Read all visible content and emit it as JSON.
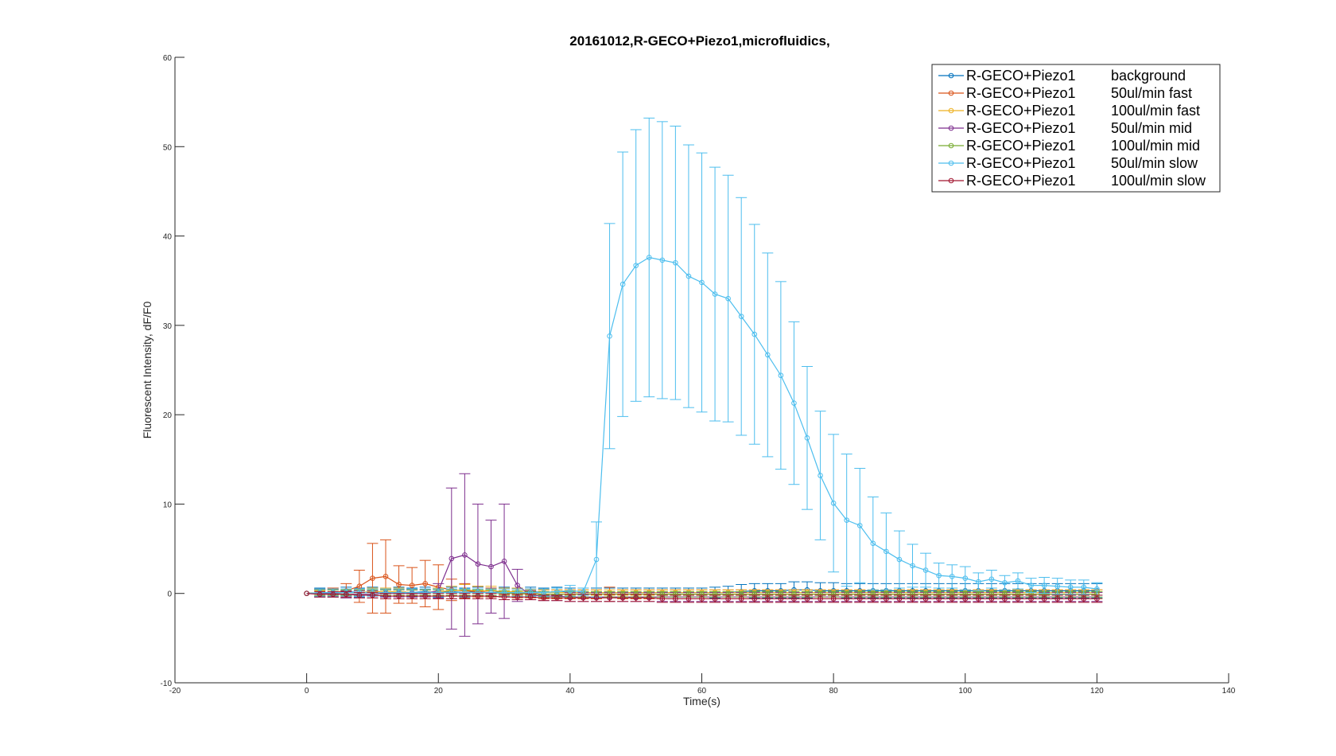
{
  "chart_data": {
    "type": "line",
    "title": "20161012,R-GECO+Piezo1,microfluidics,",
    "xlabel": "Time(s)",
    "ylabel": "Fluorescent Intensity, dF/F0",
    "xlim": [
      -20,
      140
    ],
    "ylim": [
      -10,
      60
    ],
    "xticks": [
      "-20",
      "0",
      "20",
      "40",
      "60",
      "80",
      "100",
      "120",
      "140"
    ],
    "yticks": [
      "-10",
      "0",
      "10",
      "20",
      "30",
      "40",
      "50",
      "60"
    ],
    "grid": false,
    "legend_position": "top-right",
    "x": [
      0,
      2,
      4,
      6,
      8,
      10,
      12,
      14,
      16,
      18,
      20,
      22,
      24,
      26,
      28,
      30,
      32,
      34,
      36,
      38,
      40,
      42,
      44,
      46,
      48,
      50,
      52,
      54,
      56,
      58,
      60,
      62,
      64,
      66,
      68,
      70,
      72,
      74,
      76,
      78,
      80,
      82,
      84,
      86,
      88,
      90,
      92,
      94,
      96,
      98,
      100,
      102,
      104,
      106,
      108,
      110,
      112,
      114,
      116,
      118,
      120
    ],
    "series": [
      {
        "name_col1": "R-GECO+Piezo1",
        "name_col2": "background",
        "color": "#0072BD",
        "values": [
          0,
          0.1,
          0.1,
          0.2,
          0.1,
          0.2,
          0.1,
          0.2,
          0.1,
          0.2,
          0.1,
          0.2,
          0.1,
          0.2,
          0.1,
          0.2,
          0.1,
          0.2,
          0.1,
          0.2,
          0.1,
          0.1,
          0.1,
          0.1,
          0.1,
          0.1,
          0.1,
          0.1,
          0.1,
          0.1,
          0.1,
          0.1,
          0.1,
          0.2,
          0.3,
          0.3,
          0.3,
          0.4,
          0.4,
          0.3,
          0.3,
          0.3,
          0.3,
          0.3,
          0.3,
          0.3,
          0.3,
          0.3,
          0.3,
          0.3,
          0.3,
          0.3,
          0.3,
          0.3,
          0.3,
          0.3,
          0.3,
          0.3,
          0.3,
          0.3,
          0.3
        ],
        "errors": [
          0,
          0.5,
          0.5,
          0.5,
          0.5,
          0.5,
          0.5,
          0.5,
          0.5,
          0.5,
          0.5,
          0.5,
          0.5,
          0.5,
          0.5,
          0.5,
          0.5,
          0.5,
          0.5,
          0.5,
          0.5,
          0.5,
          0.5,
          0.5,
          0.5,
          0.5,
          0.5,
          0.5,
          0.5,
          0.5,
          0.5,
          0.6,
          0.7,
          0.8,
          0.8,
          0.8,
          0.8,
          0.9,
          0.9,
          0.9,
          0.9,
          0.8,
          0.8,
          0.8,
          0.8,
          0.8,
          0.8,
          0.8,
          0.8,
          0.8,
          0.8,
          0.8,
          0.8,
          0.8,
          0.8,
          0.8,
          0.8,
          0.8,
          0.8,
          0.8,
          0.8
        ]
      },
      {
        "name_col1": "R-GECO+Piezo1",
        "name_col2": "50ul/min fast",
        "color": "#D95319",
        "values": [
          0,
          0.1,
          0.1,
          0.3,
          0.8,
          1.7,
          1.9,
          1.0,
          0.9,
          1.1,
          0.7,
          0.4,
          0.3,
          0.2,
          0.1,
          0.1,
          0.0,
          0.0,
          -0.1,
          -0.1,
          -0.1,
          -0.1,
          -0.1,
          -0.1,
          -0.1,
          -0.1,
          -0.1,
          -0.1,
          -0.1,
          -0.1,
          -0.1,
          -0.1,
          -0.1,
          -0.1,
          -0.1,
          -0.1,
          -0.1,
          -0.1,
          -0.1,
          -0.1,
          -0.1,
          -0.1,
          -0.1,
          -0.1,
          -0.1,
          -0.1,
          -0.1,
          -0.1,
          -0.1,
          -0.1,
          -0.1,
          -0.1,
          -0.1,
          -0.1,
          -0.1,
          -0.1,
          -0.1,
          -0.1,
          -0.1,
          -0.1,
          -0.1
        ],
        "errors": [
          0,
          0.4,
          0.5,
          0.8,
          1.8,
          3.9,
          4.1,
          2.1,
          2.0,
          2.6,
          2.5,
          1.2,
          0.8,
          0.6,
          0.5,
          0.5,
          0.5,
          0.5,
          0.5,
          0.5,
          0.5,
          0.5,
          0.5,
          0.8,
          0.5,
          0.5,
          0.5,
          0.5,
          0.5,
          0.5,
          0.5,
          0.5,
          0.5,
          0.5,
          0.5,
          0.5,
          0.5,
          0.5,
          0.5,
          0.5,
          0.5,
          0.5,
          0.5,
          0.5,
          0.5,
          0.5,
          0.5,
          0.5,
          0.5,
          0.5,
          0.5,
          0.5,
          0.5,
          0.5,
          0.5,
          0.5,
          0.5,
          0.5,
          0.5,
          0.5,
          0.5
        ]
      },
      {
        "name_col1": "R-GECO+Piezo1",
        "name_col2": "100ul/min fast",
        "color": "#EDB120",
        "values": [
          0,
          0,
          0.1,
          0.1,
          0.1,
          0.2,
          0.2,
          0.2,
          0.1,
          0.1,
          0.2,
          0.3,
          0.4,
          0.3,
          0.3,
          0.2,
          0.2,
          0.1,
          0.1,
          0.1,
          0.1,
          0.1,
          0.1,
          0.1,
          0.1,
          0.1,
          0.1,
          0.1,
          0.1,
          0.1,
          0.1,
          0.1,
          0.1,
          0.1,
          0.1,
          0.1,
          0.1,
          0.1,
          0.1,
          0.1,
          0.1,
          0.1,
          0.1,
          0.1,
          0.1,
          0.1,
          0.1,
          0.1,
          0.1,
          0.1,
          0.1,
          0.1,
          0.1,
          0.1,
          0.1,
          0.1,
          0.1,
          0.1,
          0.1,
          0.1,
          0.1
        ],
        "errors": [
          0,
          0.3,
          0.3,
          0.3,
          0.3,
          0.4,
          0.4,
          0.4,
          0.3,
          0.3,
          0.4,
          0.5,
          0.6,
          0.5,
          0.5,
          0.4,
          0.4,
          0.3,
          0.3,
          0.3,
          0.3,
          0.3,
          0.3,
          0.3,
          0.3,
          0.3,
          0.3,
          0.3,
          0.3,
          0.3,
          0.3,
          0.3,
          0.3,
          0.3,
          0.3,
          0.3,
          0.3,
          0.3,
          0.3,
          0.3,
          0.3,
          0.3,
          0.3,
          0.3,
          0.3,
          0.3,
          0.3,
          0.3,
          0.3,
          0.3,
          0.3,
          0.3,
          0.3,
          0.3,
          0.3,
          0.3,
          0.3,
          0.3,
          0.3,
          0.3,
          0.3
        ]
      },
      {
        "name_col1": "R-GECO+Piezo1",
        "name_col2": "50ul/min mid",
        "color": "#7E2F8E",
        "values": [
          0,
          0,
          0,
          -0.1,
          -0.1,
          -0.1,
          0.0,
          0.0,
          0.0,
          0.0,
          0.3,
          3.9,
          4.3,
          3.3,
          3.0,
          3.6,
          0.9,
          -0.2,
          -0.3,
          -0.3,
          -0.4,
          -0.4,
          -0.4,
          -0.4,
          -0.4,
          -0.4,
          -0.4,
          -0.4,
          -0.4,
          -0.4,
          -0.4,
          -0.4,
          -0.4,
          -0.4,
          -0.4,
          -0.4,
          -0.4,
          -0.4,
          -0.4,
          -0.4,
          -0.4,
          -0.4,
          -0.4,
          -0.4,
          -0.4,
          -0.4,
          -0.4,
          -0.4,
          -0.4,
          -0.4,
          -0.4,
          -0.4,
          -0.4,
          -0.4,
          -0.4,
          -0.4,
          -0.4,
          -0.4,
          -0.4,
          -0.4,
          -0.4
        ],
        "errors": [
          0,
          0.4,
          0.4,
          0.4,
          0.4,
          0.4,
          0.4,
          0.4,
          0.4,
          0.4,
          0.8,
          7.9,
          9.1,
          6.7,
          5.2,
          6.4,
          1.8,
          0.5,
          0.5,
          0.5,
          0.5,
          0.5,
          0.5,
          0.5,
          0.5,
          0.5,
          0.5,
          0.5,
          0.5,
          0.5,
          0.5,
          0.5,
          0.5,
          0.5,
          0.5,
          0.5,
          0.5,
          0.5,
          0.5,
          0.5,
          0.5,
          0.5,
          0.5,
          0.5,
          0.5,
          0.5,
          0.5,
          0.5,
          0.5,
          0.5,
          0.5,
          0.5,
          0.5,
          0.5,
          0.5,
          0.5,
          0.5,
          0.5,
          0.5,
          0.5,
          0.5
        ]
      },
      {
        "name_col1": "R-GECO+Piezo1",
        "name_col2": "100ul/min mid",
        "color": "#77AC30",
        "values": [
          0,
          0.1,
          0.1,
          0.1,
          0.1,
          0.1,
          0.1,
          0.1,
          0.1,
          0.1,
          0.1,
          0.1,
          0.1,
          0.1,
          0.1,
          0.0,
          0.0,
          -0.1,
          -0.1,
          -0.1,
          -0.1,
          -0.1,
          -0.1,
          -0.1,
          -0.1,
          -0.1,
          -0.1,
          -0.1,
          -0.1,
          -0.1,
          -0.1,
          -0.1,
          -0.1,
          -0.1,
          -0.1,
          -0.1,
          -0.1,
          -0.1,
          -0.1,
          -0.1,
          -0.1,
          -0.1,
          -0.1,
          -0.1,
          -0.1,
          -0.1,
          -0.1,
          -0.1,
          -0.1,
          -0.1,
          -0.1,
          -0.1,
          -0.1,
          -0.1,
          -0.1,
          -0.1,
          -0.1,
          -0.1,
          -0.1,
          -0.1,
          -0.1
        ],
        "errors": [
          0,
          0.3,
          0.3,
          0.3,
          0.3,
          0.3,
          0.3,
          0.3,
          0.3,
          0.3,
          0.3,
          0.3,
          0.3,
          0.3,
          0.3,
          0.3,
          0.3,
          0.3,
          0.3,
          0.3,
          0.3,
          0.3,
          0.3,
          0.3,
          0.3,
          0.3,
          0.3,
          0.3,
          0.3,
          0.3,
          0.3,
          0.3,
          0.3,
          0.3,
          0.3,
          0.3,
          0.3,
          0.3,
          0.3,
          0.3,
          0.3,
          0.3,
          0.3,
          0.3,
          0.3,
          0.3,
          0.3,
          0.3,
          0.3,
          0.3,
          0.3,
          0.3,
          0.3,
          0.3,
          0.3,
          0.3,
          0.3,
          0.3,
          0.3,
          0.3,
          0.3
        ]
      },
      {
        "name_col1": "R-GECO+Piezo1",
        "name_col2": "50ul/min slow",
        "color": "#4DBEEE",
        "values": [
          0,
          0.1,
          0.1,
          0.1,
          0.1,
          0.1,
          0.1,
          0.1,
          0.1,
          0.1,
          0.1,
          0.1,
          0.1,
          0.1,
          0.1,
          0.1,
          0.1,
          0.1,
          0.1,
          0.2,
          0.3,
          0.2,
          3.8,
          28.8,
          34.6,
          36.7,
          37.6,
          37.3,
          37.0,
          35.5,
          34.8,
          33.5,
          33.0,
          31.0,
          29.0,
          26.7,
          24.4,
          21.3,
          17.4,
          13.2,
          10.1,
          8.2,
          7.6,
          5.6,
          4.7,
          3.8,
          3.1,
          2.6,
          2.0,
          1.9,
          1.7,
          1.3,
          1.6,
          1.2,
          1.4,
          0.9,
          0.9,
          0.8,
          0.7,
          0.7,
          0.5
        ],
        "errors": [
          0,
          0.4,
          0.4,
          0.4,
          0.4,
          0.4,
          0.4,
          0.4,
          0.4,
          0.4,
          0.4,
          0.4,
          0.4,
          0.4,
          0.4,
          0.4,
          0.4,
          0.4,
          0.4,
          0.4,
          0.6,
          0.4,
          4.2,
          12.6,
          14.8,
          15.2,
          15.6,
          15.5,
          15.3,
          14.7,
          14.5,
          14.2,
          13.8,
          13.3,
          12.3,
          11.4,
          10.5,
          9.1,
          8.0,
          7.2,
          7.7,
          7.4,
          6.4,
          5.2,
          4.3,
          3.2,
          2.4,
          1.9,
          1.4,
          1.3,
          1.3,
          1.0,
          1.0,
          0.8,
          0.9,
          0.8,
          0.9,
          0.9,
          0.8,
          0.8,
          0.7
        ]
      },
      {
        "name_col1": "R-GECO+Piezo1",
        "name_col2": "100ul/min slow",
        "color": "#A2142F",
        "values": [
          0,
          -0.1,
          -0.1,
          -0.1,
          -0.2,
          -0.2,
          -0.3,
          -0.3,
          -0.3,
          -0.3,
          -0.3,
          -0.3,
          -0.3,
          -0.3,
          -0.3,
          -0.4,
          -0.4,
          -0.4,
          -0.5,
          -0.5,
          -0.5,
          -0.5,
          -0.5,
          -0.5,
          -0.5,
          -0.5,
          -0.5,
          -0.6,
          -0.6,
          -0.6,
          -0.6,
          -0.6,
          -0.6,
          -0.6,
          -0.6,
          -0.6,
          -0.6,
          -0.6,
          -0.6,
          -0.6,
          -0.6,
          -0.6,
          -0.6,
          -0.6,
          -0.6,
          -0.6,
          -0.6,
          -0.6,
          -0.6,
          -0.6,
          -0.6,
          -0.6,
          -0.6,
          -0.6,
          -0.6,
          -0.6,
          -0.6,
          -0.6,
          -0.6,
          -0.6,
          -0.6
        ],
        "errors": [
          0,
          0.3,
          0.3,
          0.3,
          0.3,
          0.3,
          0.3,
          0.3,
          0.3,
          0.3,
          0.3,
          0.3,
          0.3,
          0.3,
          0.3,
          0.3,
          0.3,
          0.3,
          0.3,
          0.3,
          0.4,
          0.4,
          0.4,
          0.4,
          0.4,
          0.4,
          0.4,
          0.4,
          0.4,
          0.4,
          0.4,
          0.4,
          0.4,
          0.4,
          0.4,
          0.4,
          0.4,
          0.4,
          0.4,
          0.4,
          0.4,
          0.4,
          0.4,
          0.4,
          0.4,
          0.4,
          0.4,
          0.4,
          0.4,
          0.4,
          0.4,
          0.4,
          0.4,
          0.4,
          0.4,
          0.4,
          0.4,
          0.4,
          0.4,
          0.4,
          0.4
        ]
      }
    ]
  }
}
